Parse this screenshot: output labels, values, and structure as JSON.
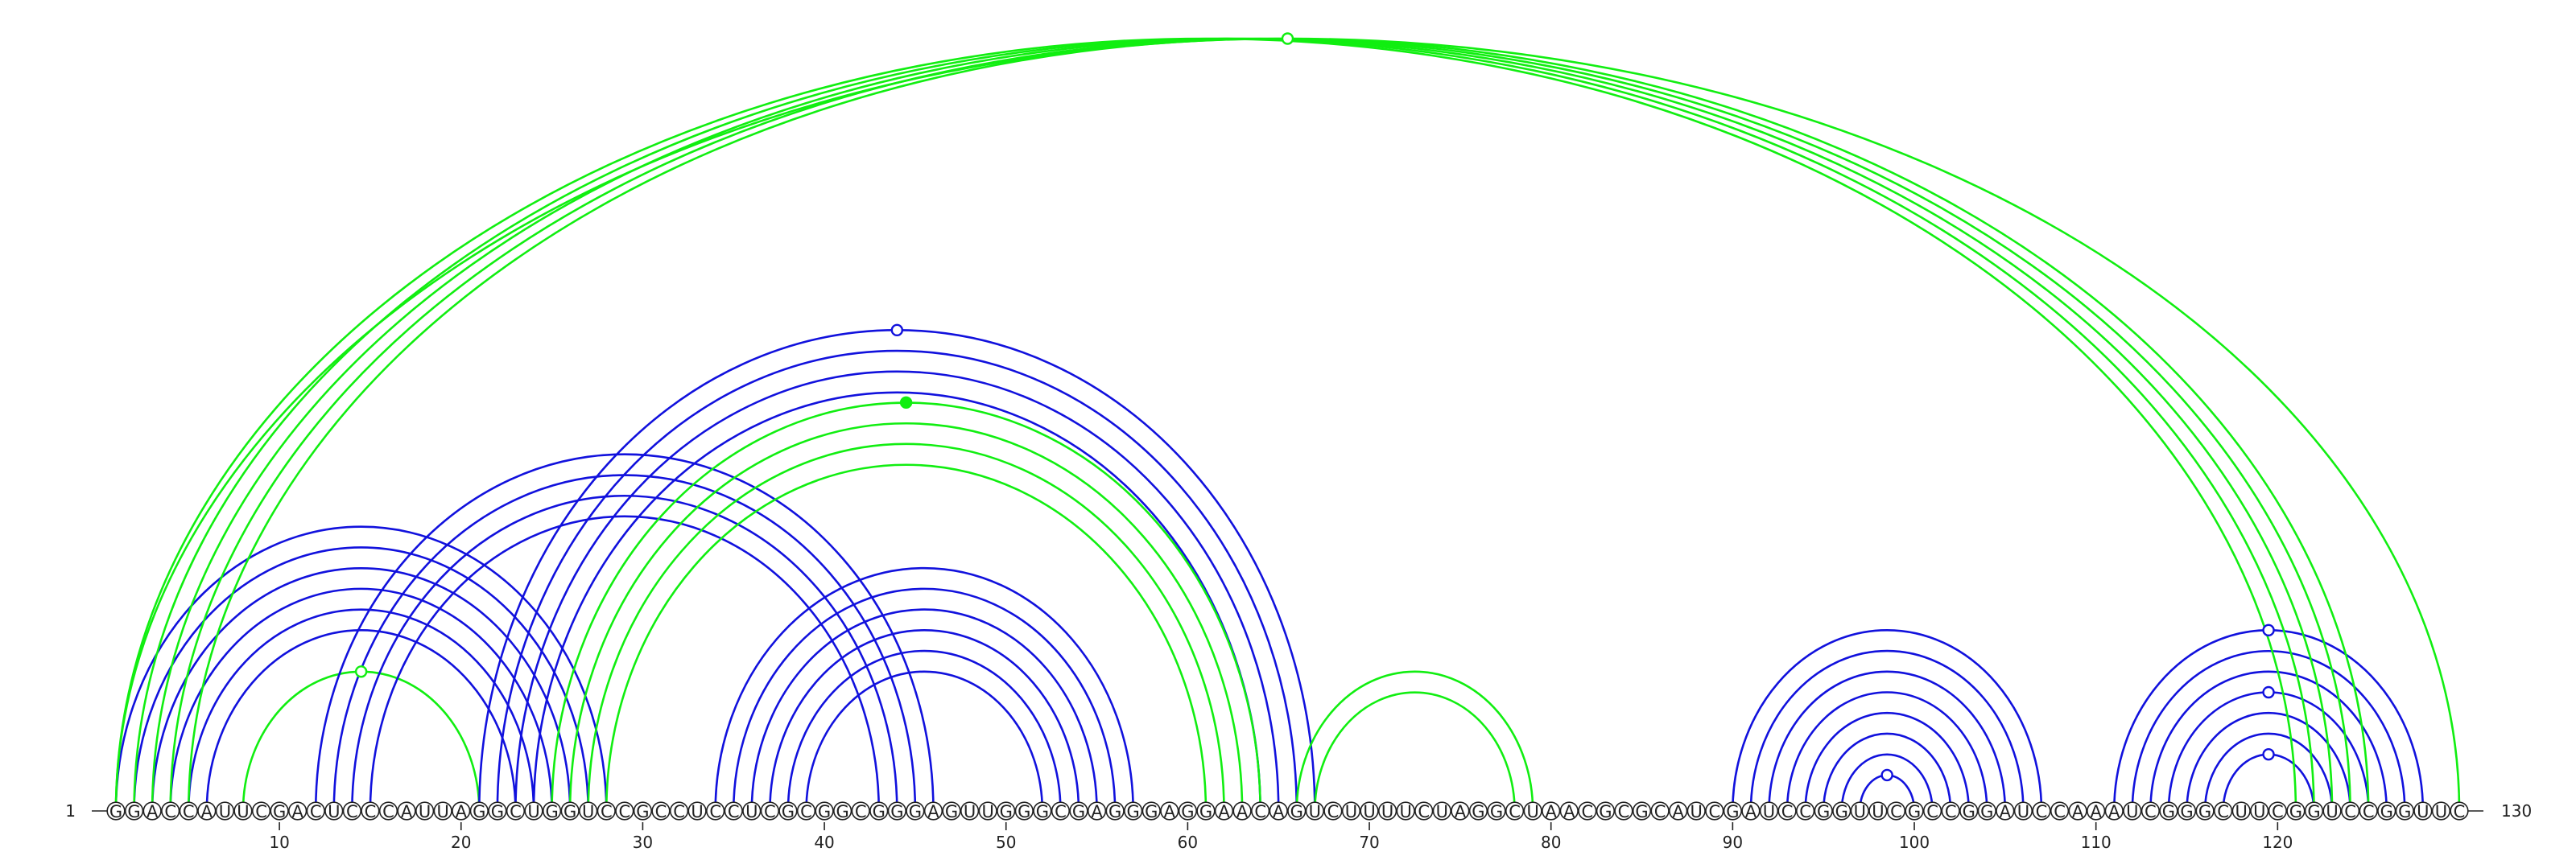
{
  "sequence": "GGACCAUUCGACUCCCAUUAGGCUGGUCCGCCUCCUCGCGGCGGGAGUUGGGCGAGGGAGGAACAGUCUUUUCUAGGCUAACGCGCAUCGAUCCGGUUCGCCGGAUCCAAAUCGGGCUUCGGUCCGGUUC",
  "start_label": "1",
  "end_label": "130",
  "ticks": [
    "10",
    "20",
    "30",
    "40",
    "50",
    "60",
    "70",
    "80",
    "90",
    "100",
    "110",
    "120"
  ],
  "colors": {
    "blue": "#1111dd",
    "green": "#11ee11",
    "text": "#222222"
  },
  "arc_groups": [
    {
      "color": "blue",
      "pairs": [
        [
          1,
          28
        ],
        [
          2,
          27
        ],
        [
          3,
          26
        ],
        [
          4,
          25
        ],
        [
          5,
          24
        ],
        [
          6,
          23
        ]
      ]
    },
    {
      "color": "green",
      "pairs": [
        [
          8,
          21
        ]
      ]
    },
    {
      "color": "blue",
      "pairs": [
        [
          12,
          46
        ],
        [
          13,
          45
        ],
        [
          14,
          44
        ],
        [
          15,
          43
        ]
      ]
    },
    {
      "color": "blue",
      "pairs": [
        [
          21,
          67
        ],
        [
          22,
          66
        ],
        [
          23,
          65
        ],
        [
          24,
          64
        ]
      ]
    },
    {
      "color": "green",
      "pairs": [
        [
          25,
          64
        ],
        [
          26,
          63
        ],
        [
          27,
          62
        ],
        [
          28,
          61
        ]
      ]
    },
    {
      "color": "blue",
      "pairs": [
        [
          34,
          57
        ],
        [
          35,
          56
        ],
        [
          36,
          55
        ],
        [
          37,
          54
        ],
        [
          38,
          53
        ],
        [
          39,
          52
        ]
      ]
    },
    {
      "color": "green",
      "pairs": [
        [
          66,
          79
        ],
        [
          67,
          78
        ]
      ]
    },
    {
      "color": "blue",
      "pairs": [
        [
          90,
          107
        ],
        [
          91,
          106
        ],
        [
          92,
          105
        ],
        [
          93,
          104
        ],
        [
          94,
          103
        ],
        [
          95,
          102
        ],
        [
          96,
          101
        ],
        [
          97,
          100
        ]
      ]
    },
    {
      "color": "blue",
      "pairs": [
        [
          111,
          128
        ],
        [
          112,
          127
        ],
        [
          113,
          126
        ],
        [
          114,
          125
        ],
        [
          115,
          124
        ],
        [
          116,
          123
        ],
        [
          117,
          122
        ]
      ]
    },
    {
      "color": "green",
      "pairs": [
        [
          1,
          121
        ],
        [
          2,
          122
        ],
        [
          3,
          123
        ],
        [
          4,
          124
        ],
        [
          5,
          125
        ],
        [
          1,
          130
        ]
      ]
    }
  ],
  "markers": [
    {
      "label": "pseudoknot-marker-top",
      "i": 1,
      "j": 130,
      "color": "green",
      "filled": false
    },
    {
      "label": "pseudoknot-marker-blue",
      "i": 21,
      "j": 67,
      "color": "blue",
      "filled": false
    },
    {
      "label": "pseudoknot-marker-green",
      "i": 25,
      "j": 64,
      "color": "green",
      "filled": true
    },
    {
      "label": "hairpin-marker-left",
      "i": 8,
      "j": 21,
      "color": "green",
      "filled": false
    },
    {
      "label": "hairpin-marker-middle",
      "i": 97,
      "j": 100,
      "color": "blue",
      "filled": false
    },
    {
      "label": "hairpin-marker-right-1",
      "i": 111,
      "j": 128,
      "color": "blue",
      "filled": false
    },
    {
      "label": "hairpin-marker-right-2",
      "i": 114,
      "j": 125,
      "color": "blue",
      "filled": false
    },
    {
      "label": "hairpin-marker-right-3",
      "i": 117,
      "j": 122,
      "color": "blue",
      "filled": false
    }
  ]
}
